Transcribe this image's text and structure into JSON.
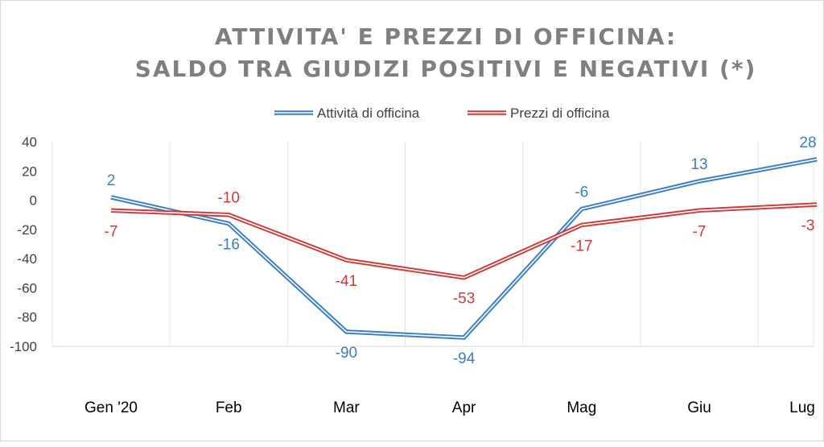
{
  "chart_data": {
    "type": "line",
    "title": [
      "ATTIVITA' E PREZZI DI OFFICINA:",
      "SALDO TRA GIUDIZI POSITIVI E NEGATIVI (*)"
    ],
    "categories": [
      "Gen '20",
      "Feb",
      "Mar",
      "Apr",
      "Mag",
      "Giu",
      "Lug"
    ],
    "ylim": [
      -100,
      40
    ],
    "yticks": [
      40,
      20,
      0,
      -20,
      -40,
      -60,
      -80,
      -100
    ],
    "grid": "vertical",
    "legend_position": "top",
    "series": [
      {
        "name": "Attività di officina",
        "color": "#3a7dc9",
        "values": [
          2,
          -16,
          -90,
          -94,
          -6,
          13,
          28
        ],
        "label_pos": [
          "above",
          "below",
          "below",
          "below",
          "above",
          "above",
          "above"
        ]
      },
      {
        "name": "Prezzi di officina",
        "color": "#d03a3a",
        "values": [
          -7,
          -10,
          -41,
          -53,
          -17,
          -7,
          -3
        ],
        "label_pos": [
          "below",
          "above",
          "below",
          "below",
          "below",
          "below",
          "below"
        ]
      }
    ]
  }
}
